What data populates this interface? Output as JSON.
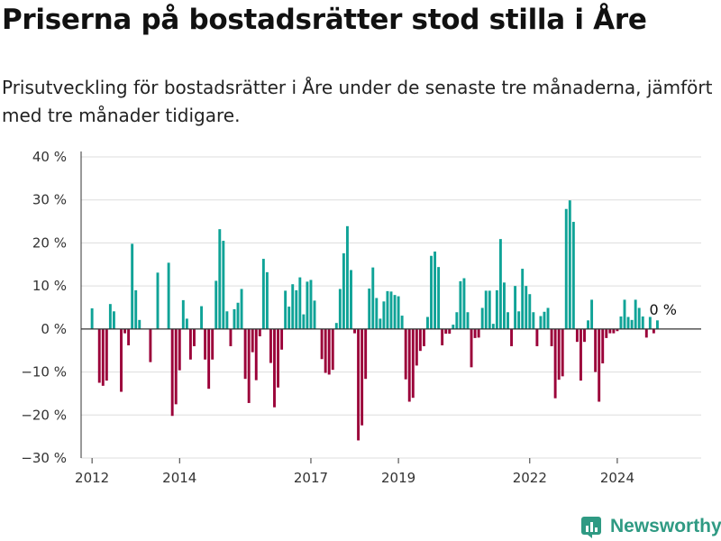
{
  "header": {
    "title": "Priserna på bostadsrätter stod stilla i Åre",
    "subtitle": "Prisutveckling för bostadsrätter i Åre under de senaste tre månaderna, jämfört med tre månader tidigare."
  },
  "brand": {
    "name": "Newsworthy",
    "icon": "newsworthy-logo-icon",
    "color": "#2f9a83"
  },
  "colors": {
    "positive": "#0fa397",
    "negative": "#9b0039",
    "grid": "#dddddd",
    "axis": "#333333"
  },
  "chart_data": {
    "type": "bar",
    "title": "",
    "xlabel": "",
    "ylabel": "",
    "ylim": [
      -30,
      40
    ],
    "yticks": [
      40,
      30,
      20,
      10,
      0,
      -10,
      -20,
      -30
    ],
    "ytick_labels": [
      "40 %",
      "30 %",
      "20 %",
      "10 %",
      "0 %",
      "−10 %",
      "−20 %",
      "−30 %"
    ],
    "xlim": [
      "2011-10",
      "2025-12"
    ],
    "xticks": [
      "2012-01",
      "2014-01",
      "2017-01",
      "2019-01",
      "2022-01",
      "2024-01"
    ],
    "xtick_labels": [
      "2012",
      "2014",
      "2017",
      "2019",
      "2022",
      "2024"
    ],
    "grid": true,
    "last_value_label": "0 %",
    "start": "2012-01",
    "frequency": "monthly",
    "unit": "%",
    "values": [
      4.8,
      0,
      -12.5,
      -13.2,
      -12,
      5.8,
      4.1,
      0,
      -14.6,
      -1,
      -3.8,
      19.8,
      9,
      2.1,
      0,
      0,
      -7.7,
      0,
      13.1,
      0,
      0,
      15.4,
      -20.2,
      -17.5,
      -9.6,
      6.7,
      2.4,
      -7.1,
      -4,
      0,
      5.3,
      -7.1,
      -13.9,
      -7.1,
      11.2,
      23.2,
      20.5,
      4.1,
      -4,
      4.6,
      6.1,
      9.3,
      -11.6,
      -17.2,
      -5.4,
      -11.9,
      -1.7,
      16.3,
      13.2,
      -7.9,
      -18.2,
      -13.6,
      -4.8,
      8.9,
      5.2,
      10.4,
      9,
      12,
      3.4,
      11,
      11.4,
      6.6,
      0,
      -7,
      -10.2,
      -10.6,
      -9.5,
      1.4,
      9.3,
      17.6,
      23.9,
      13.7,
      -1,
      -25.9,
      -22.4,
      -11.6,
      9.4,
      14.3,
      7.2,
      2.4,
      6.4,
      8.8,
      8.7,
      7.9,
      7.6,
      3.1,
      -11.7,
      -16.9,
      -16,
      -8.5,
      -5.1,
      -4,
      2.8,
      17,
      18,
      14.4,
      -3.8,
      -1.1,
      -1.1,
      1,
      3.9,
      11.1,
      11.8,
      3.9,
      -8.9,
      -2.1,
      -2,
      4.9,
      8.9,
      8.9,
      1.2,
      9,
      20.9,
      10.8,
      3.9,
      -4,
      10,
      4.1,
      14,
      10,
      8.1,
      3.9,
      -4,
      3,
      4,
      4.9,
      -4,
      -16.1,
      -11.8,
      -11,
      27.9,
      29.9,
      24.9,
      -3,
      -12,
      -3,
      2,
      6.8,
      -10,
      -16.9,
      -8,
      -2.1,
      -1,
      -1,
      -0.5,
      2.9,
      6.8,
      2.8,
      2.1,
      6.8,
      4.9,
      2.9,
      -2,
      2.8,
      -1,
      2,
      0
    ]
  }
}
